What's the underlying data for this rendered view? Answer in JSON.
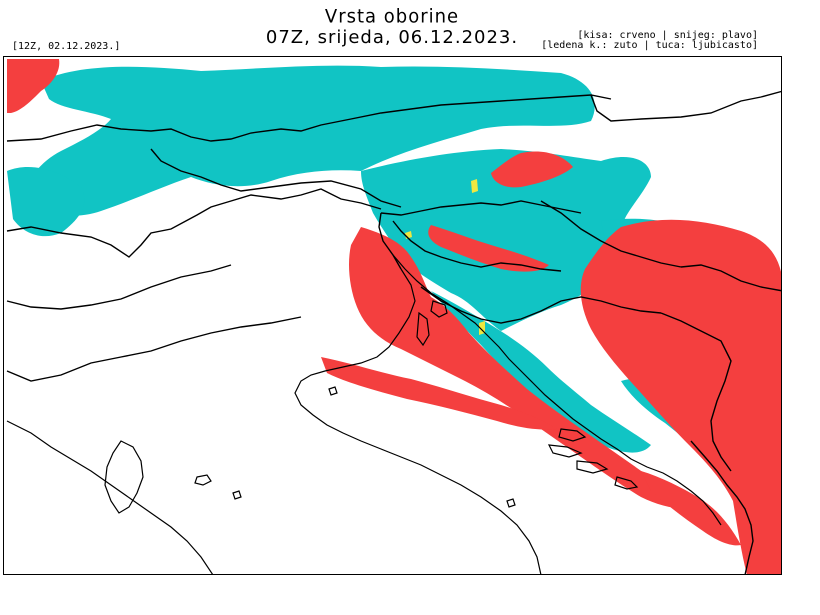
{
  "header": {
    "title": "Vrsta oborine",
    "subtitle": "07Z, srijeda, 06.12.2023.",
    "run": "[12Z, 02.12.2023.]"
  },
  "legend": {
    "line1": "[kisa: crveno | snijeg: plavo]",
    "line2": "[ledena k.: zuto | tuca: ljubicasto]"
  },
  "colors": {
    "rain": "#f43f3f",
    "snow": "#11c4c4",
    "freezing_rain": "#f0e840",
    "hail": "#b050d0",
    "borders": "#000000"
  }
}
